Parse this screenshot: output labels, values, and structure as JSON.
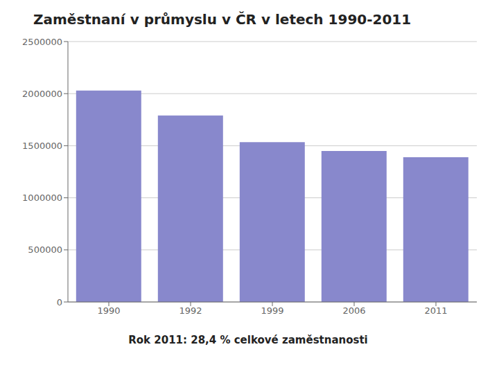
{
  "chart_data": {
    "type": "bar",
    "title": "Zaměstnaní v průmyslu v ČR v letech 1990-2011",
    "subtitle": "Rok 2011: 28,4 % celkové zaměstnanosti",
    "categories": [
      "1990",
      "1992",
      "1999",
      "2006",
      "2011"
    ],
    "values": [
      2030000,
      1790000,
      1535000,
      1450000,
      1390000
    ],
    "color": "#8888cc",
    "ylim": [
      0,
      2500000
    ],
    "yticks": [
      0,
      500000,
      1000000,
      1500000,
      2000000,
      2500000
    ],
    "grid": true
  }
}
